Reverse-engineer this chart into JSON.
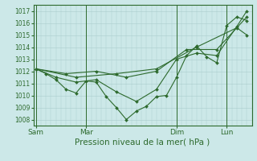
{
  "background_color": "#cce8e8",
  "grid_color": "#aacccc",
  "line_color": "#2d6a2d",
  "marker_color": "#2d6a2d",
  "xlabel": "Pression niveau de la mer( hPa )",
  "xlabel_fontsize": 7.5,
  "yticks": [
    1008,
    1009,
    1010,
    1011,
    1012,
    1013,
    1014,
    1015,
    1016,
    1017
  ],
  "ylim": [
    1007.5,
    1017.5
  ],
  "xtick_labels": [
    "Sam",
    "Mar",
    "Dim",
    "Lun"
  ],
  "xtick_positions": [
    0,
    10,
    28,
    38
  ],
  "xlim": [
    -0.5,
    43
  ],
  "vline_positions": [
    0,
    10,
    28,
    38
  ],
  "series": [
    {
      "x": [
        0,
        2,
        4,
        6,
        8,
        10,
        12,
        14,
        16,
        18,
        20,
        22,
        24,
        26,
        28,
        30,
        32,
        34,
        36,
        38,
        40,
        42
      ],
      "y": [
        1012.2,
        1011.8,
        1011.3,
        1010.5,
        1010.2,
        1011.2,
        1011.1,
        1009.9,
        1009.0,
        1008.0,
        1008.7,
        1009.1,
        1009.9,
        1010.0,
        1011.5,
        1013.3,
        1014.1,
        1013.2,
        1012.7,
        1015.8,
        1016.5,
        1016.2
      ]
    },
    {
      "x": [
        0,
        4,
        8,
        12,
        16,
        20,
        24,
        28,
        32,
        36,
        40,
        42
      ],
      "y": [
        1012.2,
        1011.5,
        1011.1,
        1011.3,
        1010.3,
        1009.5,
        1010.5,
        1013.0,
        1013.5,
        1013.3,
        1015.7,
        1017.0
      ]
    },
    {
      "x": [
        0,
        6,
        12,
        18,
        24,
        30,
        36,
        42
      ],
      "y": [
        1012.2,
        1011.8,
        1012.0,
        1011.5,
        1012.0,
        1013.8,
        1013.8,
        1016.5
      ]
    },
    {
      "x": [
        0,
        8,
        16,
        24,
        32,
        40,
        42
      ],
      "y": [
        1012.2,
        1011.5,
        1011.8,
        1012.2,
        1014.0,
        1015.6,
        1015.0
      ]
    }
  ]
}
